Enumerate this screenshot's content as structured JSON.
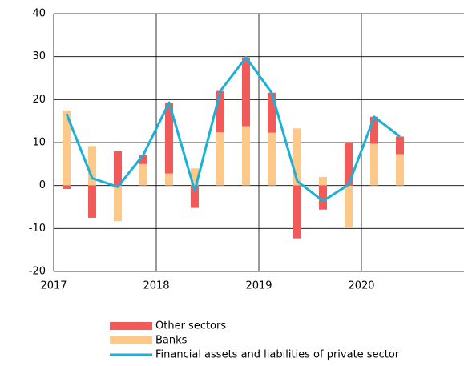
{
  "chart_data": {
    "type": "bar",
    "categories": [
      "2017",
      null,
      null,
      null,
      "2018",
      null,
      null,
      null,
      "2019",
      null,
      null,
      null,
      "2020",
      null,
      null,
      null
    ],
    "series": [
      {
        "name": "Other sectors",
        "color": "#f25a5a",
        "values": [
          -0.8,
          -7.5,
          8.0,
          2.2,
          16.5,
          -5.2,
          9.6,
          16.0,
          9.3,
          -12.3,
          -5.6,
          10.0,
          6.3,
          4.1,
          null,
          null
        ]
      },
      {
        "name": "Banks",
        "color": "#fdc98a",
        "values": [
          17.5,
          9.2,
          -8.3,
          5.0,
          2.8,
          4.0,
          12.4,
          13.8,
          12.3,
          13.3,
          2.0,
          -9.8,
          9.7,
          7.3,
          null,
          null
        ]
      },
      {
        "name": "Financial assets and liabilities of private sector",
        "type": "line",
        "color": "#1ab0d8",
        "values": [
          16.7,
          1.7,
          -0.3,
          7.2,
          19.3,
          -1.2,
          22.0,
          29.8,
          21.6,
          1.0,
          -3.6,
          0.2,
          16.0,
          11.4,
          null,
          null
        ]
      }
    ],
    "ylim": [
      -20,
      40
    ],
    "yticks": [
      -20,
      -10,
      0,
      10,
      20,
      30,
      40
    ],
    "grid": true,
    "legend": "bottom"
  }
}
